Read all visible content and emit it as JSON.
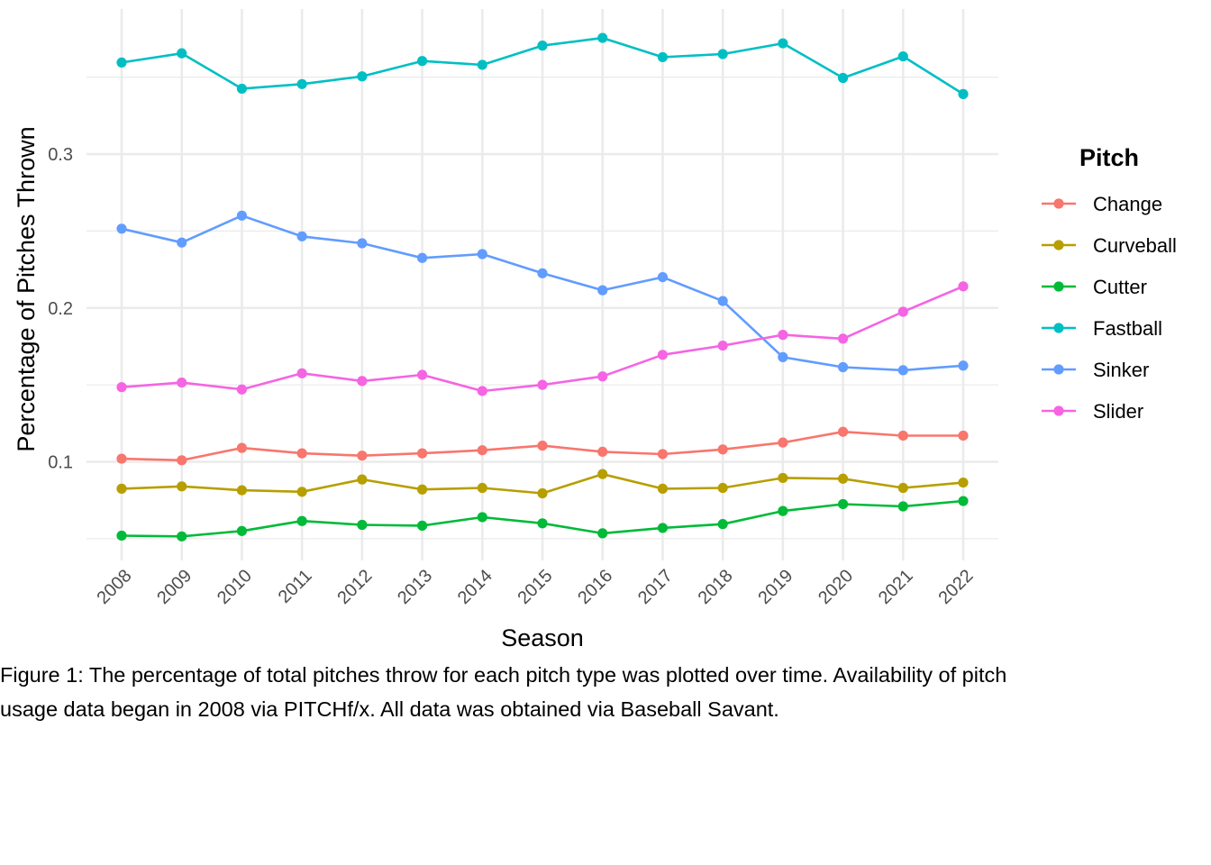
{
  "chart_data": {
    "type": "line",
    "title": "",
    "xlabel": "Season",
    "ylabel": "Percentage of Pitches Thrown",
    "x": [
      2008,
      2009,
      2010,
      2011,
      2012,
      2013,
      2014,
      2015,
      2016,
      2017,
      2018,
      2019,
      2020,
      2021,
      2022
    ],
    "x_tick_labels": [
      "2008",
      "2009",
      "2010",
      "2011",
      "2012",
      "2013",
      "2014",
      "2015",
      "2016",
      "2017",
      "2018",
      "2019",
      "2020",
      "2021",
      "2022"
    ],
    "y_ticks": [
      0.1,
      0.2,
      0.3
    ],
    "y_tick_labels": [
      "0.1",
      "0.2",
      "0.3"
    ],
    "ylim": [
      0.04,
      0.38
    ],
    "grid": true,
    "legend": {
      "title": "Pitch",
      "position": "right"
    },
    "series": [
      {
        "name": "Change",
        "color": "#F8766D",
        "values": [
          0.102,
          0.101,
          0.109,
          0.1055,
          0.104,
          0.1055,
          0.1075,
          0.1105,
          0.1065,
          0.105,
          0.108,
          0.1125,
          0.1195,
          0.117,
          0.117
        ]
      },
      {
        "name": "Curveball",
        "color": "#B79F00",
        "values": [
          0.0825,
          0.084,
          0.0815,
          0.0805,
          0.0885,
          0.082,
          0.083,
          0.0795,
          0.092,
          0.0825,
          0.083,
          0.0895,
          0.089,
          0.083,
          0.0865
        ]
      },
      {
        "name": "Cutter",
        "color": "#00BA38",
        "values": [
          0.052,
          0.0515,
          0.055,
          0.0615,
          0.059,
          0.0585,
          0.064,
          0.06,
          0.0535,
          0.057,
          0.0595,
          0.068,
          0.0725,
          0.071,
          0.0745
        ]
      },
      {
        "name": "Fastball",
        "color": "#00BFC4",
        "values": [
          0.3595,
          0.3655,
          0.3425,
          0.3455,
          0.3505,
          0.3605,
          0.358,
          0.3705,
          0.3755,
          0.363,
          0.365,
          0.372,
          0.3495,
          0.3635,
          0.339
        ]
      },
      {
        "name": "Sinker",
        "color": "#619CFF",
        "values": [
          0.2515,
          0.2425,
          0.26,
          0.2465,
          0.242,
          0.2325,
          0.235,
          0.2225,
          0.2115,
          0.22,
          0.2045,
          0.168,
          0.1615,
          0.1595,
          0.1625
        ]
      },
      {
        "name": "Slider",
        "color": "#F564E3",
        "values": [
          0.1485,
          0.1515,
          0.147,
          0.1575,
          0.1525,
          0.1565,
          0.146,
          0.15,
          0.1555,
          0.1695,
          0.1755,
          0.1825,
          0.18,
          0.1975,
          0.214
        ]
      }
    ],
    "caption": [
      "Figure 1: The percentage of total pitches throw for each pitch type was plotted over time. Availability of pitch",
      "usage data began in 2008 via PITCHf/x. All data was obtained via Baseball Savant."
    ]
  }
}
